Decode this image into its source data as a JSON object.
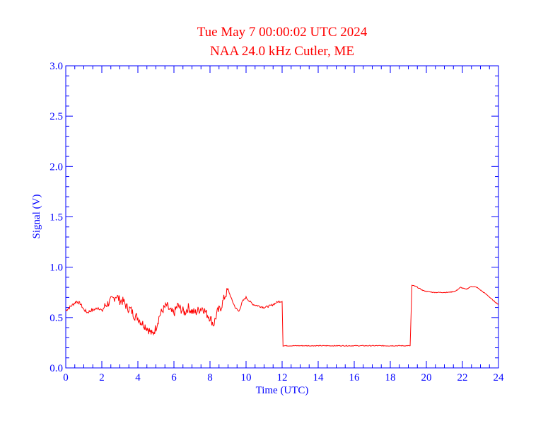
{
  "chart_data": {
    "type": "line",
    "title": "Tue May 7 00:00:02 UTC 2024",
    "subtitle": "NAA 24.0 kHz Cutler, ME",
    "xlabel": "Time (UTC)",
    "ylabel": "Signal (V)",
    "xlim": [
      0,
      24
    ],
    "ylim": [
      0,
      3.0
    ],
    "x_ticks": [
      0,
      2,
      4,
      6,
      8,
      10,
      12,
      14,
      16,
      18,
      20,
      22,
      24
    ],
    "x_tick_labels": [
      "0",
      "2",
      "4",
      "6",
      "8",
      "10",
      "12",
      "14",
      "16",
      "18",
      "20",
      "22",
      "24"
    ],
    "y_ticks": [
      0,
      0.5,
      1.0,
      1.5,
      2.0,
      2.5,
      3.0
    ],
    "y_tick_labels": [
      "0.0",
      "0.5",
      "1.0",
      "1.5",
      "2.0",
      "2.5",
      "3.0"
    ],
    "grid": false,
    "colors": {
      "series": "#ff0000",
      "axes": "#0000ff",
      "title": "#ff0000"
    },
    "series": [
      {
        "x": [
          0,
          0.2,
          0.4,
          0.6,
          0.8,
          1.0,
          1.2,
          1.4,
          1.6,
          1.8,
          2.0,
          2.2,
          2.4,
          2.6,
          2.8,
          3.0,
          3.2,
          3.4,
          3.6,
          3.8,
          4.0,
          4.2,
          4.4,
          4.6,
          4.8,
          5.0,
          5.2,
          5.4,
          5.6,
          5.8,
          6.0,
          6.2,
          6.4,
          6.6,
          6.8,
          7.0,
          7.2,
          7.4,
          7.6,
          7.8,
          8.0,
          8.2,
          8.4,
          8.6,
          8.8,
          9.0,
          9.2,
          9.4,
          9.6,
          9.8,
          10.0,
          10.2,
          10.4,
          10.6,
          10.8,
          11.0,
          11.2,
          11.4,
          11.6,
          11.8,
          12.0,
          12.05,
          12.2,
          13.0,
          14.0,
          15.0,
          16.0,
          17.0,
          18.0,
          18.6,
          19.0,
          19.1,
          19.2,
          19.4,
          19.6,
          19.8,
          20.0,
          20.4,
          20.8,
          21.2,
          21.6,
          21.9,
          22.2,
          22.5,
          22.8,
          23.1,
          23.4,
          23.7,
          24.0
        ],
        "y": [
          0.57,
          0.6,
          0.63,
          0.66,
          0.64,
          0.58,
          0.55,
          0.57,
          0.58,
          0.6,
          0.57,
          0.62,
          0.65,
          0.68,
          0.72,
          0.67,
          0.66,
          0.6,
          0.58,
          0.52,
          0.5,
          0.45,
          0.42,
          0.38,
          0.33,
          0.4,
          0.52,
          0.58,
          0.62,
          0.56,
          0.54,
          0.62,
          0.58,
          0.55,
          0.6,
          0.56,
          0.55,
          0.58,
          0.6,
          0.54,
          0.5,
          0.43,
          0.55,
          0.6,
          0.7,
          0.78,
          0.68,
          0.6,
          0.56,
          0.66,
          0.7,
          0.66,
          0.63,
          0.62,
          0.61,
          0.6,
          0.61,
          0.62,
          0.64,
          0.66,
          0.66,
          0.22,
          0.22,
          0.22,
          0.22,
          0.22,
          0.22,
          0.22,
          0.22,
          0.22,
          0.22,
          0.22,
          0.82,
          0.81,
          0.79,
          0.77,
          0.76,
          0.75,
          0.75,
          0.75,
          0.76,
          0.8,
          0.78,
          0.81,
          0.8,
          0.76,
          0.72,
          0.67,
          0.63
        ]
      }
    ]
  }
}
